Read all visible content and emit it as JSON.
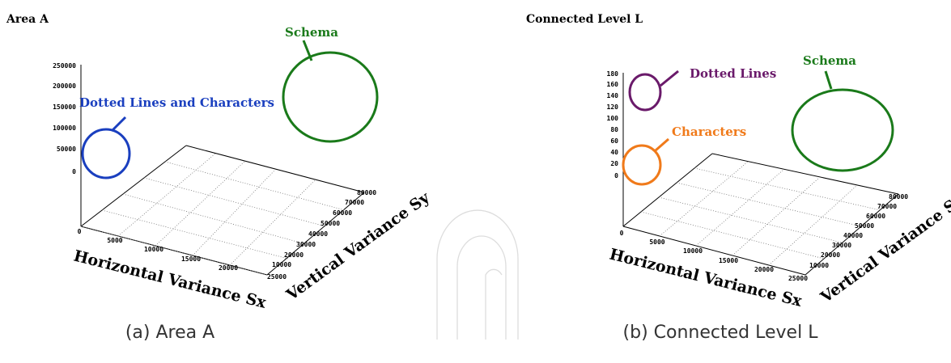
{
  "chart_data": [
    {
      "type": "scatter",
      "title": "Area A",
      "caption": "(a) Area A",
      "xlabel": "Horizontal Variance Sx",
      "ylabel": "Vertical Variance Sy",
      "x_ticks": [
        "0",
        "5000",
        "10000",
        "15000",
        "20000",
        "25000"
      ],
      "y_ticks": [
        "10000",
        "20000",
        "30000",
        "40000",
        "50000",
        "60000",
        "70000",
        "80000"
      ],
      "z_ticks": [
        "0",
        "50000",
        "100000",
        "150000",
        "200000",
        "250000"
      ],
      "xlim": [
        0,
        25000
      ],
      "ylim": [
        10000,
        80000
      ],
      "zlim": [
        0,
        250000
      ],
      "clusters": [
        {
          "label": "Schema",
          "color": "#1a7a1a"
        },
        {
          "label": "Dotted Lines and Characters",
          "color": "#1a3fbf"
        }
      ]
    },
    {
      "type": "scatter",
      "title": "Connected Level L",
      "caption": "(b) Connected Level L",
      "xlabel": "Horizontal Variance Sx",
      "ylabel": "Vertical Variance Sy",
      "x_ticks": [
        "0",
        "5000",
        "10000",
        "15000",
        "20000",
        "25000"
      ],
      "y_ticks": [
        "10000",
        "20000",
        "30000",
        "40000",
        "50000",
        "60000",
        "70000",
        "80000"
      ],
      "z_ticks": [
        "0",
        "20",
        "40",
        "60",
        "80",
        "100",
        "120",
        "140",
        "160",
        "180"
      ],
      "xlim": [
        0,
        25000
      ],
      "ylim": [
        10000,
        80000
      ],
      "zlim": [
        0,
        180
      ],
      "clusters": [
        {
          "label": "Dotted Lines",
          "color": "#6a1a6a"
        },
        {
          "label": "Characters",
          "color": "#f07a1a"
        },
        {
          "label": "Schema",
          "color": "#1a7a1a"
        }
      ]
    }
  ]
}
